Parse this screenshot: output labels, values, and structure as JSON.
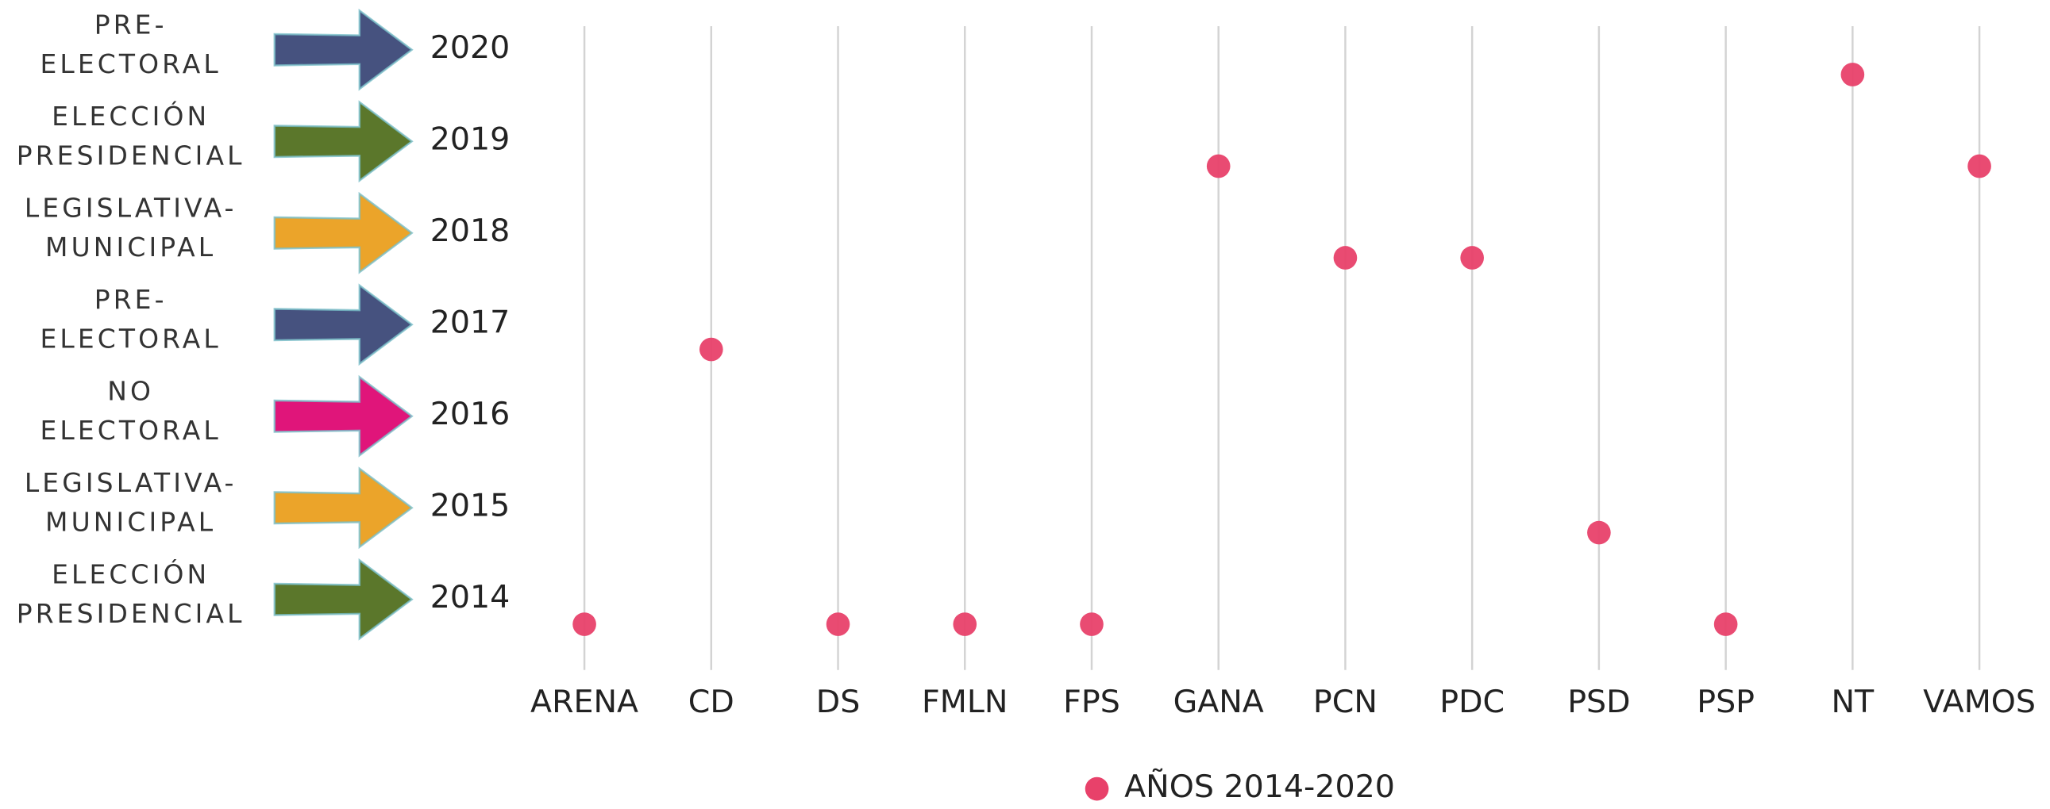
{
  "chart_data": {
    "type": "dot",
    "categories": [
      "ARENA",
      "CD",
      "DS",
      "FMLN",
      "FPS",
      "GANA",
      "PCN",
      "PDC",
      "PSD",
      "PSP",
      "NT",
      "VAMOS"
    ],
    "series": [
      {
        "name": "AÑOS 2014-2020",
        "color": "#e8416a",
        "values": [
          2014,
          2017,
          2014,
          2014,
          2014,
          2019,
          2018,
          2018,
          2015,
          2014,
          2020,
          2019
        ]
      }
    ],
    "ylim": [
      2013.5,
      2020.5
    ],
    "yticks": [
      2014,
      2015,
      2016,
      2017,
      2018,
      2019,
      2020
    ],
    "row_labels": [
      {
        "lines": [
          "ELECCIÓN",
          "PRESIDENCIAL"
        ],
        "color": "#5b772b"
      },
      {
        "lines": [
          "LEGISLATIVA-",
          "MUNICIPAL"
        ],
        "color": "#eba42a"
      },
      {
        "lines": [
          "NO",
          "ELECTORAL"
        ],
        "color": "#e0157a"
      },
      {
        "lines": [
          "PRE-",
          "ELECTORAL"
        ],
        "color": "#46527f"
      },
      {
        "lines": [
          "LEGISLATIVA-",
          "MUNICIPAL"
        ],
        "color": "#eba42a"
      },
      {
        "lines": [
          "ELECCIÓN",
          "PRESIDENCIAL"
        ],
        "color": "#5b772b"
      },
      {
        "lines": [
          "PRE-",
          "ELECTORAL"
        ],
        "color": "#46527f"
      }
    ],
    "grid": true
  }
}
